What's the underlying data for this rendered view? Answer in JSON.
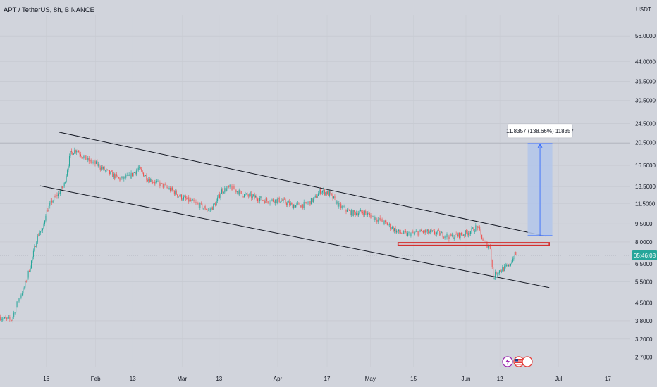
{
  "header": {
    "symbol_title": "APT / TetherUS, 8h, BINANCE",
    "currency": "USDT"
  },
  "colors": {
    "background": "#d1d4dc",
    "up": "#26a69a",
    "down": "#ef5350",
    "trendline": "#131722",
    "support_zone": "#d32f2f",
    "measure_fill": "#b3c6ea",
    "measure_line": "#2962ff",
    "price_tag": "#26a69a"
  },
  "chart_data": {
    "type": "candlestick",
    "title": "APT / TetherUS, 8h, BINANCE",
    "yscale": "log",
    "ylim": [
      2.45,
      68
    ],
    "xlim": [
      "2023-01-01T00:00",
      "2023-07-24T00:00"
    ],
    "grid": true,
    "y_ticks": [
      "56.0000",
      "44.0000",
      "36.5000",
      "30.5000",
      "24.5000",
      "20.5000",
      "16.5000",
      "13.5000",
      "11.5000",
      "9.5000",
      "8.0000",
      "6.5000",
      "5.5000",
      "4.5000",
      "3.8000",
      "3.2000",
      "2.7000"
    ],
    "x_ticks": [
      {
        "date": "2023-01-16",
        "label": "16"
      },
      {
        "date": "2023-02-01",
        "label": "Feb"
      },
      {
        "date": "2023-02-13",
        "label": "13"
      },
      {
        "date": "2023-03-01",
        "label": "Mar"
      },
      {
        "date": "2023-03-13",
        "label": "13"
      },
      {
        "date": "2023-04-01",
        "label": "Apr"
      },
      {
        "date": "2023-04-17",
        "label": "17"
      },
      {
        "date": "2023-05-01",
        "label": "May"
      },
      {
        "date": "2023-05-15",
        "label": "15"
      },
      {
        "date": "2023-06-01",
        "label": "Jun"
      },
      {
        "date": "2023-06-12",
        "label": "12"
      },
      {
        "date": "2023-07-01",
        "label": "Jul"
      },
      {
        "date": "2023-07-17",
        "label": "17"
      }
    ],
    "price_path": [
      [
        "2023-01-01",
        3.95
      ],
      [
        "2023-01-03",
        3.85
      ],
      [
        "2023-01-05",
        3.85
      ],
      [
        "2023-01-07",
        4.6
      ],
      [
        "2023-01-09",
        5.2
      ],
      [
        "2023-01-11",
        6.4
      ],
      [
        "2023-01-12",
        7.2
      ],
      [
        "2023-01-13",
        8.2
      ],
      [
        "2023-01-14",
        8.8
      ],
      [
        "2023-01-15",
        8.9
      ],
      [
        "2023-01-16",
        10.5
      ],
      [
        "2023-01-18",
        11.8
      ],
      [
        "2023-01-20",
        12.6
      ],
      [
        "2023-01-22",
        13.8
      ],
      [
        "2023-01-24",
        18.5
      ],
      [
        "2023-01-26",
        19.2
      ],
      [
        "2023-01-28",
        18.0
      ],
      [
        "2023-01-30",
        17.2
      ],
      [
        "2023-02-01",
        16.8
      ],
      [
        "2023-02-05",
        15.5
      ],
      [
        "2023-02-09",
        14.5
      ],
      [
        "2023-02-12",
        14.8
      ],
      [
        "2023-02-15",
        16.0
      ],
      [
        "2023-02-18",
        14.6
      ],
      [
        "2023-02-22",
        13.8
      ],
      [
        "2023-02-26",
        13.0
      ],
      [
        "2023-03-01",
        12.2
      ],
      [
        "2023-03-05",
        11.6
      ],
      [
        "2023-03-10",
        10.8
      ],
      [
        "2023-03-12",
        11.5
      ],
      [
        "2023-03-14",
        13.0
      ],
      [
        "2023-03-17",
        13.4
      ],
      [
        "2023-03-21",
        12.5
      ],
      [
        "2023-03-25",
        12.2
      ],
      [
        "2023-03-29",
        11.8
      ],
      [
        "2023-04-02",
        11.9
      ],
      [
        "2023-04-06",
        11.3
      ],
      [
        "2023-04-10",
        11.4
      ],
      [
        "2023-04-13",
        12.0
      ],
      [
        "2023-04-15",
        13.0
      ],
      [
        "2023-04-18",
        12.6
      ],
      [
        "2023-04-21",
        11.3
      ],
      [
        "2023-04-25",
        10.5
      ],
      [
        "2023-04-29",
        10.6
      ],
      [
        "2023-05-03",
        10.0
      ],
      [
        "2023-05-07",
        9.4
      ],
      [
        "2023-05-10",
        8.8
      ],
      [
        "2023-05-13",
        8.6
      ],
      [
        "2023-05-18",
        8.8
      ],
      [
        "2023-05-23",
        8.7
      ],
      [
        "2023-05-27",
        8.4
      ],
      [
        "2023-05-31",
        8.6
      ],
      [
        "2023-06-03",
        8.9
      ],
      [
        "2023-06-05",
        9.3
      ],
      [
        "2023-06-06",
        8.5
      ],
      [
        "2023-06-07",
        8.0
      ],
      [
        "2023-06-08",
        7.8
      ],
      [
        "2023-06-09",
        7.6
      ],
      [
        "2023-06-10",
        5.7
      ],
      [
        "2023-06-11",
        6.0
      ],
      [
        "2023-06-13",
        6.2
      ],
      [
        "2023-06-15",
        6.35
      ],
      [
        "2023-06-17",
        7.1
      ]
    ],
    "current_price": 7.05,
    "current_price_tag": "05:46:08",
    "channel_upper": [
      [
        "2023-01-20",
        22.6
      ],
      [
        "2023-06-27",
        8.45
      ]
    ],
    "channel_lower": [
      [
        "2023-01-14",
        13.6
      ],
      [
        "2023-06-28",
        5.2
      ]
    ],
    "support_zone": {
      "from": "2023-05-10",
      "to": "2023-06-28",
      "low": 7.75,
      "high": 7.95
    },
    "projection": {
      "from": "2023-06-21",
      "to": "2023-06-29",
      "base": 8.5,
      "target": 20.3,
      "label": "11.8357 (138.66%) 118357"
    }
  }
}
